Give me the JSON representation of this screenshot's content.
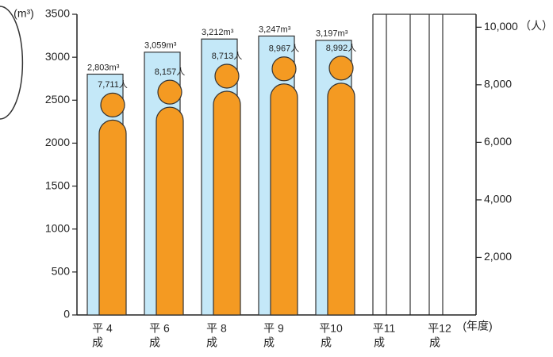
{
  "chart_data": {
    "type": "bar",
    "y_label": "(m³)",
    "y2_label": "（人）",
    "x_label": "(年度)",
    "categories": [
      [
        "平 4",
        "成"
      ],
      [
        "平 6",
        "成"
      ],
      [
        "平 8",
        "成"
      ],
      [
        "平 9",
        "成"
      ],
      [
        "平10",
        "成"
      ],
      [
        "平11",
        "成"
      ],
      [
        "平12",
        "成"
      ]
    ],
    "series": [
      {
        "name": "m³",
        "color": "#c4e8f8",
        "values": [
          2803,
          3059,
          3212,
          3247,
          3197,
          null,
          null
        ],
        "value_labels": [
          "2,803m³",
          "3,059m³",
          "3,212m³",
          "3,247m³",
          "3,197m³",
          null,
          null
        ]
      },
      {
        "name": "人",
        "color": "#f49a22",
        "axis": "y2",
        "values": [
          7711,
          8157,
          8713,
          8967,
          8992,
          null,
          null
        ],
        "value_labels": [
          "7,711人",
          "8,157人",
          "8,713人",
          "8,967人",
          "8,992人",
          null,
          null
        ]
      }
    ],
    "ylim": [
      0,
      3500
    ],
    "yticks": [
      0,
      500,
      1000,
      1500,
      2000,
      2500,
      3000,
      3500
    ],
    "y2lim": [
      0,
      10450
    ],
    "y2ticks": [
      {
        "value": 2000,
        "label": "2,000"
      },
      {
        "value": 4000,
        "label": "4,000"
      },
      {
        "value": 6000,
        "label": "6,000"
      },
      {
        "value": 8000,
        "label": "8,000"
      },
      {
        "value": 10000,
        "label": "10,000"
      }
    ]
  }
}
